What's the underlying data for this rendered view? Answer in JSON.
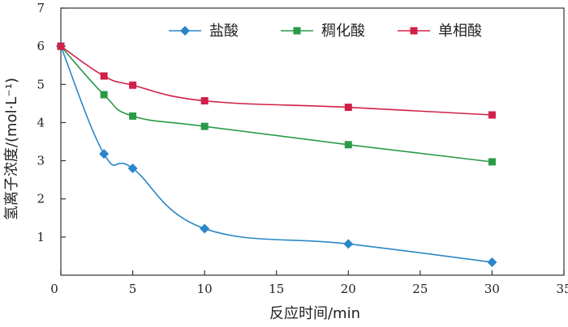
{
  "chart_data": {
    "type": "line",
    "xlabel": "反应时间/min",
    "ylabel": "氢离子浓度/(mol·L⁻¹)",
    "xlim": [
      0,
      35
    ],
    "ylim": [
      0,
      7
    ],
    "xticks": [
      0,
      5,
      10,
      15,
      20,
      25,
      30,
      35
    ],
    "yticks": [
      1,
      2,
      3,
      4,
      5,
      6,
      7
    ],
    "legend_position": "top-center",
    "series": [
      {
        "name": "盐酸",
        "color": "#2a86c8",
        "marker": "diamond",
        "x": [
          0,
          3,
          5,
          10,
          20,
          30
        ],
        "y": [
          6.0,
          3.18,
          2.8,
          1.22,
          0.82,
          0.34
        ]
      },
      {
        "name": "稠化酸",
        "color": "#2a9a48",
        "marker": "square",
        "x": [
          0,
          3,
          5,
          10,
          20,
          30
        ],
        "y": [
          6.0,
          4.73,
          4.17,
          3.9,
          3.42,
          2.97
        ]
      },
      {
        "name": "单相酸",
        "color": "#d02048",
        "marker": "square",
        "x": [
          0,
          3,
          5,
          10,
          20,
          30
        ],
        "y": [
          6.0,
          5.22,
          4.98,
          4.57,
          4.4,
          4.2
        ]
      }
    ]
  }
}
